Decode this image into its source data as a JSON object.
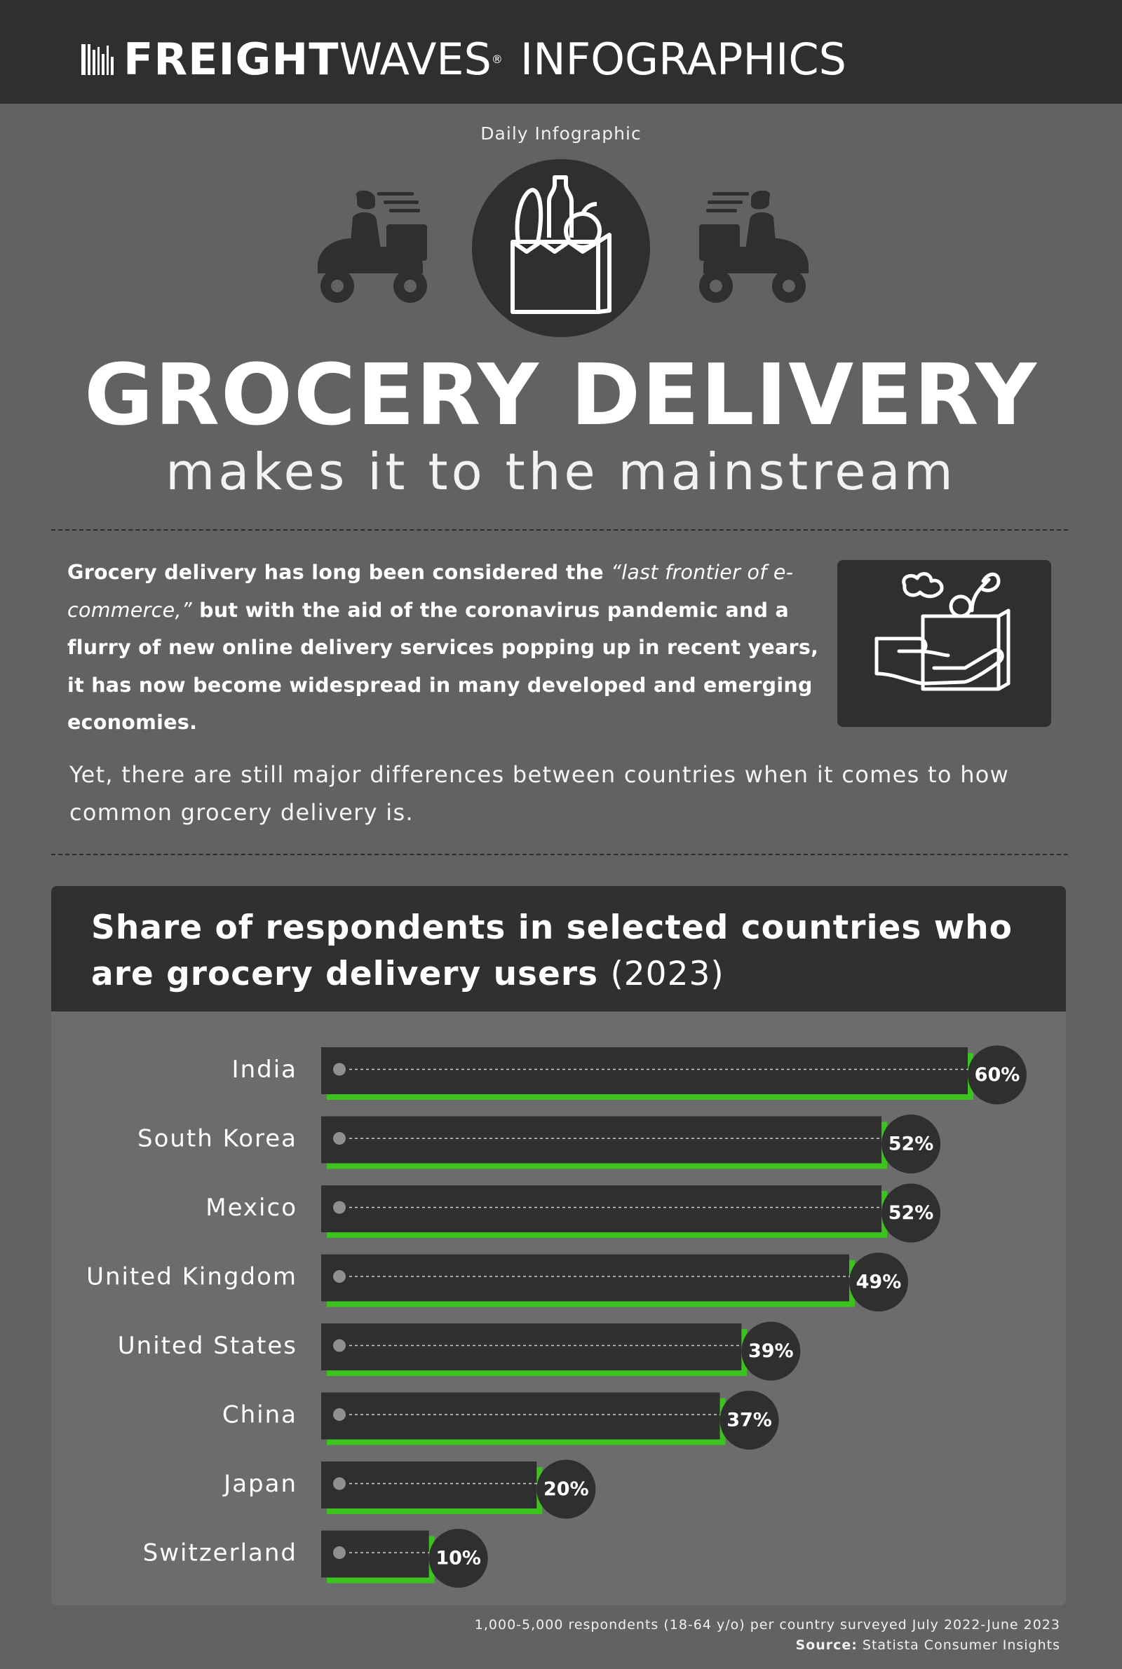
{
  "header": {
    "brand_bold": "FREIGHT",
    "brand_light": "WAVES",
    "brand_mark": "®",
    "brand_suffix": "INFOGRAPHICS"
  },
  "kicker": "Daily Infographic",
  "icons": {
    "scooter_left": "delivery-scooter-icon",
    "grocery_bag": "grocery-bag-icon",
    "scooter_right": "delivery-scooter-icon",
    "hand_bag": "hand-holding-grocery-bag-icon"
  },
  "title": "GROCERY DELIVERY",
  "subtitle": "makes it to the mainstream",
  "intro": {
    "part1": "Grocery delivery has long been considered the ",
    "quote": "“last frontier of e-commerce,”",
    "part2": " but with the aid of the coronavirus pandemic and a flurry of new online delivery services popping up in recent years, it has now become widespread in many developed and emerging economies."
  },
  "note": "Yet, there are still major differences between countries when it comes to how common grocery delivery is.",
  "chart_data": {
    "type": "bar",
    "orientation": "horizontal",
    "title": "Share of respondents in selected countries who are grocery delivery users",
    "title_year": "(2023)",
    "categories": [
      "India",
      "South Korea",
      "Mexico",
      "United Kingdom",
      "United States",
      "China",
      "Japan",
      "Switzerland"
    ],
    "values": [
      60,
      52,
      52,
      49,
      39,
      37,
      20,
      10
    ],
    "value_labels": [
      "60%",
      "52%",
      "52%",
      "49%",
      "39%",
      "37%",
      "20%",
      "10%"
    ],
    "unit": "%",
    "xlim": [
      0,
      60
    ],
    "grid": false,
    "legend": "none",
    "colors": {
      "bar": "#2f2f2f",
      "accent": "#3cc41e",
      "badge": "#2f2f2f"
    }
  },
  "footnote": "1,000-5,000 respondents (18-64 y/o) per country surveyed July 2022-June 2023",
  "source": {
    "label": "Source:",
    "text": " Statista Consumer Insights"
  },
  "colors": {
    "background": "#626262",
    "dark": "#2f2f2f",
    "accent_green": "#3cc41e"
  }
}
